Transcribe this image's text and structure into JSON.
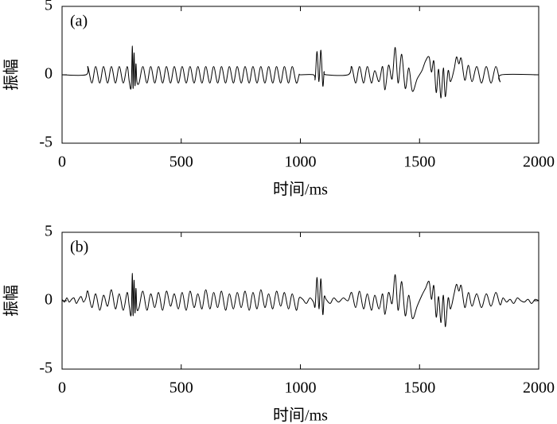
{
  "chart_data": [
    {
      "type": "line",
      "title": "(a)",
      "ylabel": "振幅",
      "xlabel": "时间/ms",
      "color": "#000000",
      "xlim": [
        0,
        2000
      ],
      "ylim": [
        -5,
        5
      ],
      "xticks": [
        0,
        500,
        1000,
        1500,
        2000
      ],
      "yticks": [
        -5,
        0,
        5
      ],
      "x": [
        0,
        100,
        108,
        125,
        141,
        158,
        174,
        191,
        207,
        224,
        240,
        257,
        273,
        282,
        290,
        295,
        298,
        302,
        306,
        310,
        314,
        323,
        339,
        356,
        372,
        389,
        405,
        422,
        438,
        455,
        471,
        488,
        504,
        521,
        537,
        554,
        570,
        587,
        603,
        620,
        636,
        653,
        669,
        686,
        702,
        719,
        735,
        752,
        768,
        785,
        801,
        818,
        834,
        851,
        867,
        884,
        900,
        917,
        933,
        950,
        966,
        983,
        995,
        1000,
        1055,
        1062,
        1070,
        1078,
        1086,
        1094,
        1100,
        1108,
        1200,
        1215,
        1232,
        1248,
        1265,
        1281,
        1298,
        1312,
        1330,
        1345,
        1355,
        1370,
        1385,
        1398,
        1410,
        1425,
        1440,
        1455,
        1470,
        1490,
        1510,
        1525,
        1540,
        1550,
        1560,
        1570,
        1580,
        1590,
        1600,
        1608,
        1620,
        1630,
        1645,
        1655,
        1665,
        1675,
        1690,
        1705,
        1720,
        1740,
        1760,
        1780,
        1800,
        1820,
        1838,
        1845,
        2000
      ],
      "values": [
        0,
        0,
        0.6,
        -0.6,
        0.6,
        -0.6,
        0.6,
        -0.6,
        0.6,
        -0.6,
        0.6,
        -0.6,
        0.6,
        -0.5,
        -0.9,
        2.1,
        -1.0,
        1.6,
        -0.8,
        0.8,
        -0.5,
        -0.6,
        0.6,
        -0.6,
        0.6,
        -0.6,
        0.6,
        -0.6,
        0.6,
        -0.6,
        0.6,
        -0.6,
        0.6,
        -0.6,
        0.6,
        -0.6,
        0.6,
        -0.6,
        0.6,
        -0.6,
        0.6,
        -0.6,
        0.6,
        -0.6,
        0.6,
        -0.6,
        0.6,
        -0.6,
        0.6,
        -0.6,
        0.6,
        -0.6,
        0.6,
        -0.6,
        0.6,
        -0.6,
        0.6,
        -0.6,
        0.6,
        -0.6,
        0.6,
        -0.6,
        0,
        0,
        0,
        -0.3,
        1.7,
        -0.5,
        1.8,
        -0.8,
        0.2,
        0,
        0,
        0.6,
        -0.6,
        0.6,
        -0.6,
        0.6,
        -0.6,
        0.3,
        -0.5,
        0.6,
        -1.1,
        0.7,
        -0.3,
        2.0,
        -0.6,
        1.5,
        -1.0,
        0.5,
        -1.2,
        -0.3,
        0.3,
        1.0,
        1.3,
        0.2,
        1.0,
        -1.3,
        0.4,
        -1.7,
        0.5,
        -1.6,
        0.3,
        -0.5,
        0.4,
        1.3,
        0.8,
        1.2,
        -0.4,
        0.7,
        -0.5,
        0.6,
        -0.6,
        0.6,
        -0.6,
        0.6,
        -0.5,
        0,
        0
      ]
    },
    {
      "type": "line",
      "title": "(b)",
      "ylabel": "振幅",
      "xlabel": "时间/ms",
      "color": "#000000",
      "xlim": [
        0,
        2000
      ],
      "ylim": [
        -5,
        5
      ],
      "xticks": [
        0,
        500,
        1000,
        1500,
        2000
      ],
      "yticks": [
        -5,
        0,
        5
      ],
      "x": [
        0,
        10,
        20,
        30,
        40,
        50,
        60,
        70,
        80,
        90,
        100,
        108,
        125,
        141,
        158,
        174,
        191,
        207,
        224,
        240,
        257,
        273,
        282,
        290,
        295,
        298,
        302,
        306,
        310,
        314,
        323,
        339,
        356,
        372,
        389,
        405,
        422,
        438,
        455,
        471,
        488,
        504,
        521,
        537,
        554,
        570,
        587,
        603,
        620,
        636,
        653,
        669,
        686,
        702,
        719,
        735,
        752,
        768,
        785,
        801,
        818,
        834,
        851,
        867,
        884,
        900,
        917,
        933,
        950,
        966,
        983,
        995,
        1010,
        1025,
        1040,
        1055,
        1062,
        1070,
        1078,
        1086,
        1094,
        1100,
        1108,
        1125,
        1140,
        1160,
        1180,
        1200,
        1215,
        1232,
        1248,
        1265,
        1281,
        1298,
        1312,
        1330,
        1345,
        1355,
        1370,
        1385,
        1398,
        1410,
        1425,
        1440,
        1455,
        1470,
        1490,
        1510,
        1525,
        1540,
        1550,
        1560,
        1570,
        1580,
        1590,
        1600,
        1608,
        1620,
        1630,
        1645,
        1655,
        1665,
        1675,
        1690,
        1705,
        1720,
        1740,
        1760,
        1780,
        1800,
        1820,
        1838,
        1850,
        1865,
        1880,
        1895,
        1910,
        1925,
        1940,
        1955,
        1970,
        1985,
        2000
      ],
      "values": [
        0.1,
        -0.1,
        0.2,
        -0.1,
        0.1,
        0.2,
        -0.2,
        0.1,
        0.3,
        -0.1,
        0.2,
        0.7,
        -0.5,
        0.5,
        -0.7,
        0.4,
        -0.4,
        0.8,
        -0.6,
        0.5,
        -0.7,
        0.6,
        -0.4,
        -1.0,
        2.0,
        -1.1,
        1.5,
        -0.9,
        0.9,
        -0.6,
        -0.5,
        0.7,
        -0.7,
        0.5,
        -0.5,
        0.6,
        -0.7,
        0.7,
        -0.4,
        0.5,
        -0.6,
        0.6,
        -0.7,
        0.7,
        -0.5,
        0.5,
        -0.6,
        0.8,
        -0.6,
        0.6,
        -0.5,
        0.7,
        -0.7,
        0.5,
        -0.6,
        0.6,
        -0.5,
        0.7,
        -0.7,
        0.6,
        -0.6,
        0.8,
        -0.5,
        0.5,
        -0.6,
        0.7,
        -0.4,
        0.6,
        -0.6,
        0.5,
        -0.7,
        0.2,
        0.1,
        -0.2,
        0.2,
        -0.1,
        -0.4,
        1.7,
        -0.6,
        1.6,
        -1.0,
        0.3,
        0.1,
        -0.2,
        0.2,
        -0.1,
        0.2,
        0.0,
        0.6,
        -0.5,
        0.7,
        -0.6,
        0.5,
        -0.7,
        0.4,
        -0.6,
        0.5,
        -1.0,
        0.6,
        -0.2,
        1.9,
        -0.7,
        1.4,
        -1.1,
        0.4,
        -1.3,
        -0.4,
        0.4,
        0.9,
        1.4,
        0.1,
        1.1,
        -1.2,
        0.3,
        -1.6,
        0.4,
        -1.9,
        0.2,
        -0.6,
        0.5,
        1.2,
        0.7,
        1.1,
        -0.5,
        0.6,
        -0.4,
        0.5,
        -0.5,
        0.5,
        -0.4,
        0.6,
        -0.3,
        0.2,
        -0.1,
        0.1,
        -0.2,
        0.2,
        0.0,
        -0.1,
        0.1,
        -0.2,
        0.1,
        0.0
      ]
    }
  ]
}
